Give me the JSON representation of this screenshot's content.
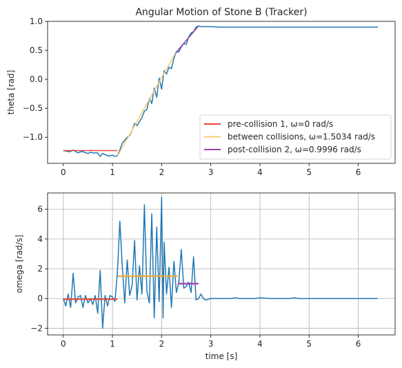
{
  "chart_data": [
    {
      "type": "line",
      "title": "Angular Motion of Stone B (Tracker)",
      "xlabel": "",
      "ylabel": "theta [rad]",
      "xlim": [
        -0.32,
        6.75
      ],
      "ylim": [
        -1.45,
        1.0
      ],
      "grid": false,
      "legend": "lower-right",
      "x_ticks": [
        0,
        1,
        2,
        3,
        4,
        5,
        6
      ],
      "y_ticks": [
        -1.0,
        -0.5,
        0.0,
        0.5,
        1.0
      ],
      "y_tick_labels": [
        "−1.0",
        "−0.5",
        "0.0",
        "0.5",
        "1.0"
      ],
      "series": [
        {
          "name": "",
          "color": "#1f77b4",
          "x": [
            0,
            0.133,
            0.2,
            0.3,
            0.35,
            0.4,
            0.5,
            0.55,
            0.6,
            0.7,
            0.75,
            0.8,
            0.9,
            0.95,
            1.0,
            1.05,
            1.1,
            1.15,
            1.2,
            1.3,
            1.35,
            1.4,
            1.45,
            1.5,
            1.6,
            1.65,
            1.7,
            1.75,
            1.8,
            1.85,
            1.9,
            1.95,
            2.0,
            2.05,
            2.1,
            2.15,
            2.2,
            2.25,
            2.3,
            2.35,
            2.4,
            2.45,
            2.5,
            2.55,
            2.6,
            2.65,
            2.7,
            2.75,
            2.8,
            2.9,
            3.0,
            3.2,
            3.4,
            3.6,
            3.8,
            4.0,
            4.2,
            4.4,
            4.6,
            4.8,
            5.0,
            5.2,
            5.4,
            5.6,
            5.8,
            6.0,
            6.2,
            6.4
          ],
          "y": [
            -1.23,
            -1.25,
            -1.22,
            -1.27,
            -1.25,
            -1.25,
            -1.28,
            -1.26,
            -1.27,
            -1.27,
            -1.33,
            -1.28,
            -1.32,
            -1.32,
            -1.31,
            -1.33,
            -1.32,
            -1.22,
            -1.1,
            -1.0,
            -0.97,
            -0.88,
            -0.76,
            -0.8,
            -0.66,
            -0.55,
            -0.52,
            -0.33,
            -0.42,
            -0.15,
            -0.31,
            0.02,
            -0.17,
            0.15,
            0.09,
            0.21,
            0.18,
            0.36,
            0.48,
            0.47,
            0.56,
            0.62,
            0.6,
            0.73,
            0.8,
            0.82,
            0.9,
            0.92,
            0.91,
            0.91,
            0.91,
            0.9,
            0.9,
            0.9,
            0.9,
            0.9,
            0.9,
            0.9,
            0.9,
            0.9,
            0.9,
            0.9,
            0.9,
            0.9,
            0.9,
            0.9,
            0.9,
            0.9
          ]
        },
        {
          "name": "pre-collision 1, ω=0 rad/s",
          "color": "#e8463a",
          "x": [
            0,
            1.1
          ],
          "y": [
            -1.23,
            -1.23
          ]
        },
        {
          "name": "between collisions, ω=1.5034 rad/s",
          "color": "#fdcb6e",
          "x": [
            1.1,
            2.28
          ],
          "y": [
            -1.33,
            0.45
          ]
        },
        {
          "name": "post-collision 2, ω=0.9996 rad/s",
          "color": "#9b3fa8",
          "x": [
            2.3,
            2.75
          ],
          "y": [
            0.47,
            0.92
          ]
        }
      ]
    },
    {
      "type": "line",
      "title": "",
      "xlabel": "time [s]",
      "ylabel": "omega [rad/s]",
      "xlim": [
        -0.32,
        6.75
      ],
      "ylim": [
        -2.45,
        7.1
      ],
      "grid": true,
      "x_ticks": [
        0,
        1,
        2,
        3,
        4,
        5,
        6
      ],
      "y_ticks": [
        -2,
        0,
        2,
        4,
        6
      ],
      "y_tick_labels": [
        "−2",
        "0",
        "2",
        "4",
        "6"
      ],
      "series": [
        {
          "name": "",
          "color": "#1f77b4",
          "x": [
            0,
            0.05,
            0.1,
            0.15,
            0.2,
            0.25,
            0.3,
            0.35,
            0.4,
            0.45,
            0.5,
            0.55,
            0.6,
            0.65,
            0.7,
            0.75,
            0.8,
            0.85,
            0.9,
            0.95,
            1.0,
            1.05,
            1.1,
            1.15,
            1.2,
            1.25,
            1.3,
            1.35,
            1.4,
            1.45,
            1.5,
            1.55,
            1.6,
            1.65,
            1.7,
            1.75,
            1.8,
            1.85,
            1.9,
            1.95,
            2.0,
            2.03,
            2.05,
            2.1,
            2.15,
            2.2,
            2.25,
            2.3,
            2.35,
            2.4,
            2.45,
            2.5,
            2.55,
            2.6,
            2.65,
            2.7,
            2.75,
            2.8,
            2.85,
            2.9,
            3.0,
            3.2,
            3.4,
            3.5,
            3.6,
            3.8,
            3.9,
            4.0,
            4.2,
            4.4,
            4.6,
            4.7,
            4.8,
            5.0,
            5.2,
            5.4,
            5.6,
            5.8,
            6.0,
            6.2,
            6.4
          ],
          "y": [
            0,
            -0.5,
            0.3,
            -0.6,
            1.7,
            -0.3,
            0.1,
            0.2,
            -0.6,
            0.2,
            -0.3,
            0.0,
            -0.4,
            0.2,
            -1.0,
            1.9,
            -2.0,
            0.2,
            -0.5,
            0.2,
            0.1,
            -0.2,
            1.7,
            5.2,
            2.1,
            -0.3,
            2.6,
            0.2,
            0.9,
            3.9,
            -0.1,
            2.2,
            0.3,
            6.3,
            0.5,
            -0.3,
            5.7,
            -1.3,
            4.8,
            -0.2,
            6.8,
            -1.3,
            3.8,
            0.3,
            2.1,
            -0.6,
            2.5,
            0.4,
            1.1,
            3.3,
            0.7,
            0.8,
            1.1,
            0.4,
            2.8,
            -0.1,
            0.0,
            0.3,
            0.0,
            -0.1,
            0.0,
            0.0,
            0.0,
            0.05,
            0.0,
            0.0,
            0.0,
            0.05,
            0.0,
            0.0,
            0.0,
            0.05,
            0.0,
            0.0,
            0.0,
            0.0,
            0.0,
            0.0,
            0.0,
            0.0,
            0.0
          ]
        },
        {
          "name": "",
          "color": "#e8463a",
          "x": [
            0,
            1.1
          ],
          "y": [
            -0.05,
            -0.05
          ]
        },
        {
          "name": "",
          "color": "#f0a82b",
          "x": [
            1.1,
            2.33
          ],
          "y": [
            1.5,
            1.5
          ]
        },
        {
          "name": "",
          "color": "#9b3fa8",
          "x": [
            2.33,
            2.75
          ],
          "y": [
            1.0,
            1.0
          ]
        }
      ]
    }
  ]
}
